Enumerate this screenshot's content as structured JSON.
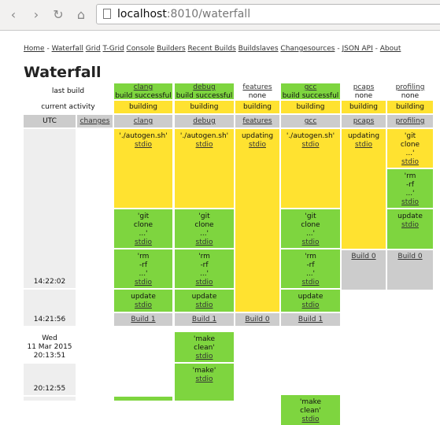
{
  "browser": {
    "url_host": "localhost",
    "url_rest": ":8010/waterfall"
  },
  "nav": {
    "home": "Home",
    "sep1": "-",
    "waterfall": "Waterfall",
    "grid": "Grid",
    "tgrid": "T-Grid",
    "console": "Console",
    "builders": "Builders",
    "recent": "Recent Builds",
    "buildslaves": "Buildslaves",
    "changesources": "Changesources",
    "sep2": "-",
    "jsonapi": "JSON API",
    "sep3": "-",
    "about": "About"
  },
  "title": "Waterfall",
  "row_labels": {
    "last_build": "last build",
    "current_activity": "current activity",
    "utc": "UTC",
    "changes": "changes"
  },
  "builders": [
    {
      "name": "clang",
      "last": "build successful",
      "activity": "building"
    },
    {
      "name": "debug",
      "last": "build successful",
      "activity": "building"
    },
    {
      "name": "features",
      "last": "none",
      "activity": "building"
    },
    {
      "name": "gcc",
      "last": "build successful",
      "activity": "building"
    },
    {
      "name": "pcaps",
      "last": "none",
      "activity": "building"
    },
    {
      "name": "profiling",
      "last": "none",
      "activity": "building"
    }
  ],
  "steps": {
    "autogen": "'./autogen.sh'",
    "stdio": "stdio",
    "updating": "updating",
    "git1": "'git",
    "git2": "clone",
    "dots": "...'",
    "rm1": "'rm",
    "rm2": "-rf",
    "rm3": "...'",
    "update": "update",
    "make_clean1": "'make",
    "make_clean2": "clean'",
    "make": "'make'",
    "ellip": "..."
  },
  "builds": {
    "b0": "Build 0",
    "b1": "Build 1"
  },
  "times": {
    "t1": "14:22:02",
    "t2": "14:21:56",
    "day": "Wed",
    "date": "11 Mar 2015",
    "t3": "20:13:51",
    "t4": "20:12:55"
  }
}
